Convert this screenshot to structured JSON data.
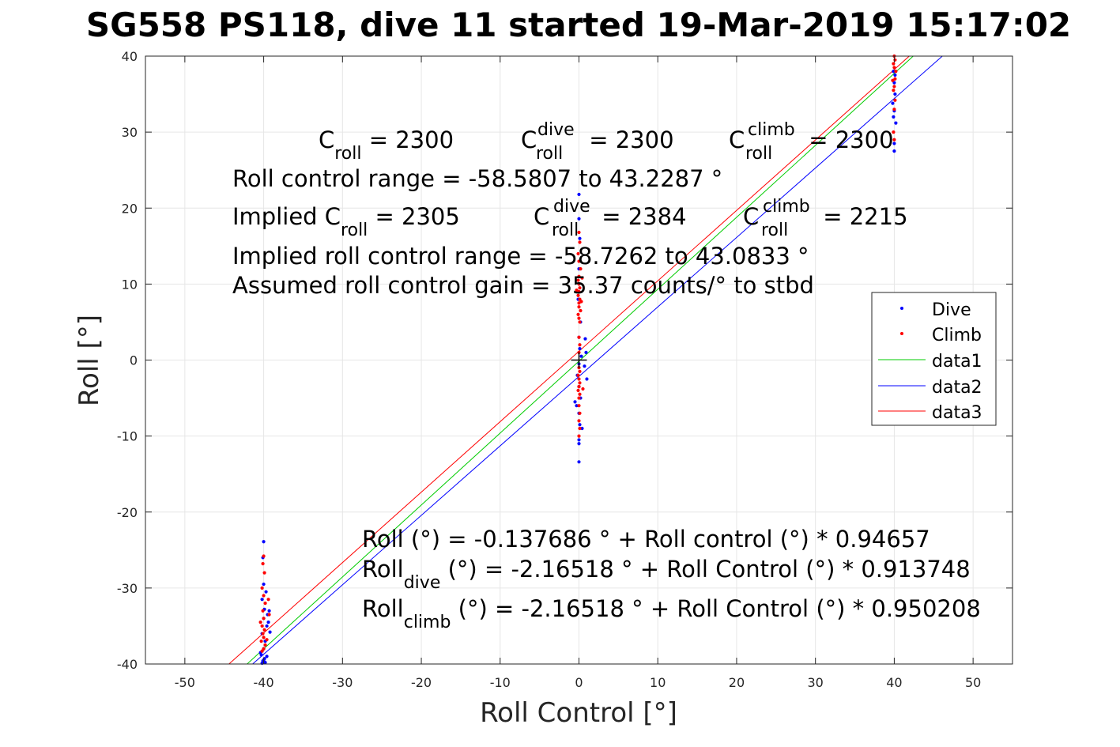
{
  "chart_data": {
    "type": "scatter",
    "title": "SG558 PS118, dive 11 started 19-Mar-2019 15:17:02",
    "xlabel": "Roll Control [°]",
    "ylabel": "Roll [°]",
    "xlim": [
      -55,
      55
    ],
    "ylim": [
      -40,
      40
    ],
    "xticks": [
      -50,
      -40,
      -30,
      -20,
      -10,
      0,
      10,
      20,
      30,
      40,
      50
    ],
    "yticks": [
      -40,
      -30,
      -20,
      -10,
      0,
      10,
      20,
      30,
      40
    ],
    "xtick_labels": [
      "-50",
      "-40",
      "-30",
      "-20",
      "-10",
      "0",
      "10",
      "20",
      "30",
      "40",
      "50"
    ],
    "ytick_labels": [
      "-40",
      "-30",
      "-20",
      "-10",
      "0",
      "10",
      "20",
      "30",
      "40"
    ],
    "grid": true,
    "legend_position": "right",
    "colors": {
      "Dive": "#0000ff",
      "Climb": "#ff0000",
      "data1": "#00cc00",
      "data2": "#0000ff",
      "data3": "#ff0000"
    },
    "series": [
      {
        "name": "Dive",
        "mode": "markers",
        "points": [
          [
            -40.0,
            -23.9
          ],
          [
            -40.1,
            -26.0
          ],
          [
            -40.0,
            -29.5
          ],
          [
            -39.7,
            -30.5
          ],
          [
            -40.2,
            -31.5
          ],
          [
            -39.9,
            -32.8
          ],
          [
            -39.5,
            -33.5
          ],
          [
            -40.0,
            -34.0
          ],
          [
            -39.6,
            -35.0
          ],
          [
            -40.2,
            -36.0
          ],
          [
            -39.8,
            -37.0
          ],
          [
            -40.0,
            -38.0
          ],
          [
            -40.3,
            -38.8
          ],
          [
            -39.9,
            -39.3
          ],
          [
            -40.1,
            -39.6
          ],
          [
            -40.2,
            -39.9
          ],
          [
            -39.8,
            -39.8
          ],
          [
            -40.0,
            -39.5
          ],
          [
            -39.3,
            -33.0
          ],
          [
            -39.4,
            -34.5
          ],
          [
            -39.2,
            -35.8
          ],
          [
            -40.4,
            -38.5
          ],
          [
            -39.6,
            -39.0
          ],
          [
            0.0,
            21.8
          ],
          [
            0.0,
            18.6
          ],
          [
            0.1,
            16.0
          ],
          [
            0.0,
            12.0
          ],
          [
            -0.1,
            8.0
          ],
          [
            0.2,
            5.0
          ],
          [
            0.0,
            3.0
          ],
          [
            0.1,
            1.5
          ],
          [
            0.3,
            0.5
          ],
          [
            0.0,
            -0.5
          ],
          [
            -0.2,
            -2.0
          ],
          [
            0.0,
            -3.5
          ],
          [
            0.2,
            -5.0
          ],
          [
            -0.3,
            -6.0
          ],
          [
            0.0,
            -7.0
          ],
          [
            0.1,
            -8.5
          ],
          [
            0.0,
            -10.5
          ],
          [
            0.0,
            -13.4
          ],
          [
            0.8,
            2.8
          ],
          [
            0.9,
            1.0
          ],
          [
            0.7,
            -0.8
          ],
          [
            1.0,
            -2.5
          ],
          [
            -0.5,
            -5.5
          ],
          [
            0.4,
            -9.0
          ],
          [
            0.0,
            -11.0
          ],
          [
            39.9,
            38.0
          ],
          [
            40.0,
            36.5
          ],
          [
            40.1,
            35.0
          ],
          [
            39.8,
            33.8
          ],
          [
            40.0,
            32.8
          ],
          [
            39.9,
            32.0
          ],
          [
            40.2,
            31.2
          ],
          [
            40.0,
            28.5
          ],
          [
            40.0,
            27.5
          ],
          [
            40.1,
            37.5
          ]
        ]
      },
      {
        "name": "Climb",
        "mode": "markers",
        "points": [
          [
            -40.0,
            -25.8
          ],
          [
            -40.1,
            -26.8
          ],
          [
            -39.9,
            -28.0
          ],
          [
            -40.2,
            -30.0
          ],
          [
            -40.0,
            -31.0
          ],
          [
            -39.8,
            -32.0
          ],
          [
            -40.1,
            -33.0
          ],
          [
            -40.0,
            -34.0
          ],
          [
            -40.2,
            -35.0
          ],
          [
            -39.9,
            -35.5
          ],
          [
            -40.1,
            -36.0
          ],
          [
            -40.0,
            -36.5
          ],
          [
            -40.3,
            -37.0
          ],
          [
            -39.8,
            -37.5
          ],
          [
            -40.0,
            -38.0
          ],
          [
            -39.4,
            -31.5
          ],
          [
            -39.3,
            -33.5
          ],
          [
            -39.6,
            -36.8
          ],
          [
            -40.4,
            -34.5
          ],
          [
            -40.2,
            -38.3
          ],
          [
            0.0,
            16.8
          ],
          [
            0.1,
            15.5
          ],
          [
            -0.1,
            14.0
          ],
          [
            0.0,
            13.0
          ],
          [
            0.2,
            12.0
          ],
          [
            0.0,
            11.0
          ],
          [
            -0.1,
            10.5
          ],
          [
            0.0,
            10.0
          ],
          [
            0.1,
            9.5
          ],
          [
            0.0,
            9.0
          ],
          [
            -0.1,
            8.5
          ],
          [
            0.1,
            8.0
          ],
          [
            0.0,
            7.5
          ],
          [
            0.0,
            7.0
          ],
          [
            0.2,
            6.5
          ],
          [
            -0.1,
            6.0
          ],
          [
            0.0,
            5.5
          ],
          [
            0.1,
            5.0
          ],
          [
            0.0,
            3.0
          ],
          [
            0.1,
            2.0
          ],
          [
            0.0,
            1.0
          ],
          [
            0.0,
            -1.0
          ],
          [
            0.1,
            -1.5
          ],
          [
            -0.1,
            -2.0
          ],
          [
            0.0,
            -2.5
          ],
          [
            0.1,
            -3.0
          ],
          [
            0.0,
            -3.5
          ],
          [
            -0.1,
            -4.0
          ],
          [
            0.1,
            -4.5
          ],
          [
            0.0,
            -5.0
          ],
          [
            0.0,
            -6.0
          ],
          [
            0.1,
            -7.0
          ],
          [
            0.0,
            -8.0
          ],
          [
            0.1,
            -9.0
          ],
          [
            0.0,
            -10.0
          ],
          [
            0.4,
            10.8
          ],
          [
            -0.3,
            9.2
          ],
          [
            0.3,
            7.7
          ],
          [
            0.5,
            -3.8
          ],
          [
            40.0,
            40.0
          ],
          [
            40.1,
            39.5
          ],
          [
            39.9,
            39.0
          ],
          [
            40.0,
            38.5
          ],
          [
            40.1,
            37.0
          ],
          [
            40.0,
            36.0
          ],
          [
            39.9,
            35.5
          ],
          [
            40.1,
            34.2
          ],
          [
            40.0,
            33.0
          ],
          [
            39.9,
            30.0
          ],
          [
            40.0,
            29.0
          ],
          [
            40.2,
            38.0
          ],
          [
            39.8,
            36.8
          ]
        ]
      },
      {
        "name": "data1",
        "mode": "line",
        "x": [
          -42.1,
          42.4
        ],
        "y": [
          -40.0,
          40.0
        ]
      },
      {
        "name": "data2",
        "mode": "line",
        "x": [
          -41.4,
          46.1
        ],
        "y": [
          -40.0,
          40.0
        ]
      },
      {
        "name": "data3",
        "mode": "line",
        "x": [
          -44.4,
          41.9
        ],
        "y": [
          -40.0,
          40.0
        ]
      }
    ],
    "crosshair": {
      "x": 0,
      "y": 0
    },
    "annotations": {
      "c_roll": {
        "base": "C",
        "sub": "roll",
        "rest": " = 2300"
      },
      "c_dive": {
        "base": "C",
        "sub": "roll",
        "sup": "dive",
        "rest": " = 2300"
      },
      "c_climb": {
        "base": "C",
        "sub": "roll",
        "sup": "climb",
        "rest": " = 2300"
      },
      "control_range": "Roll control range = -58.5807 to 43.2287 °",
      "implied_c_roll": {
        "base": "Implied C",
        "sub": "roll",
        "rest": " = 2305"
      },
      "implied_c_dive": {
        "base": "C",
        "sub": "roll",
        "sup": "dive",
        "rest": " = 2384"
      },
      "implied_c_climb": {
        "base": "C",
        "sub": "roll",
        "sup": "climb",
        "rest": " = 2215"
      },
      "implied_range": "Implied roll control range = -58.7262 to 43.0833 °",
      "gain": "Assumed roll control gain = 35.37 counts/° to stbd",
      "fit_all": "Roll (°) = -0.137686 ° + Roll control (°) * 0.94657",
      "fit_dive": {
        "base": "Roll",
        "sub": "dive",
        "rest": " (°) = -2.16518 ° + Roll Control (°) * 0.913748"
      },
      "fit_climb": {
        "base": "Roll",
        "sub": "climb",
        "rest": " (°) = -2.16518 ° + Roll Control (°) * 0.950208"
      }
    }
  }
}
